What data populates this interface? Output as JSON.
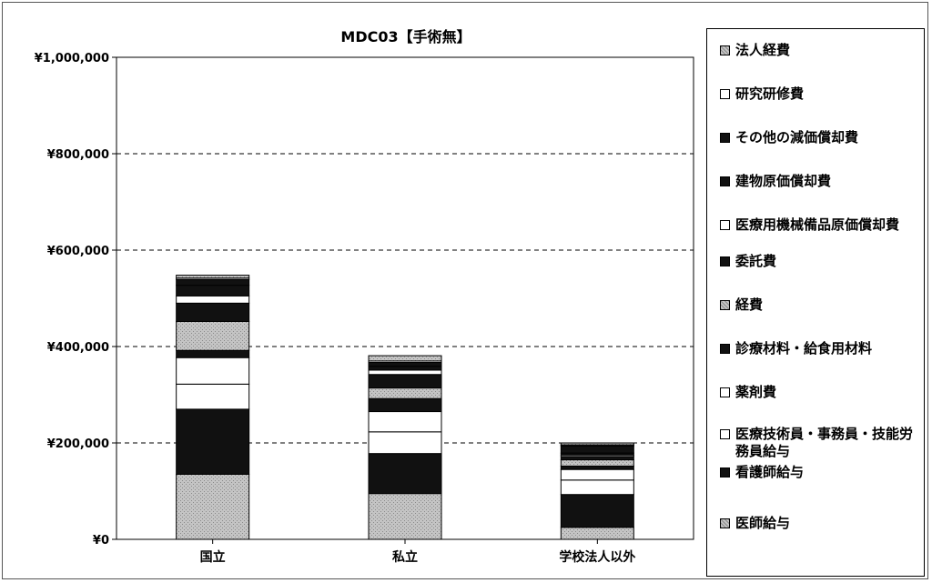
{
  "chart_data": {
    "type": "bar",
    "stacked": true,
    "title": "MDC03【手術無】",
    "xlabel": "",
    "ylabel": "",
    "categories": [
      "国立",
      "私立",
      "学校法人以外"
    ],
    "ylim": [
      0,
      1000000
    ],
    "yticks": [
      0,
      200000,
      400000,
      600000,
      800000,
      1000000
    ],
    "ytick_labels": [
      "¥0",
      "¥200,000",
      "¥400,000",
      "¥600,000",
      "¥800,000",
      "¥1,000,000"
    ],
    "grid": "horizontal dashed",
    "legend_position": "right",
    "series": [
      {
        "name": "医師給与",
        "color": "#bdbdbd",
        "values": [
          135000,
          95000,
          25000
        ]
      },
      {
        "name": "看護師給与",
        "color": "#111111",
        "values": [
          135000,
          83000,
          68000
        ]
      },
      {
        "name": "医療技術員・事務員・技能労務員給与",
        "color": "#ffffff",
        "values": [
          52000,
          45000,
          30000
        ]
      },
      {
        "name": "薬剤費",
        "color": "#ffffff",
        "values": [
          55000,
          42000,
          22000
        ]
      },
      {
        "name": "診療材料・給食用材料",
        "color": "#111111",
        "values": [
          15000,
          27000,
          7000
        ]
      },
      {
        "name": "経費",
        "color": "#bdbdbd",
        "values": [
          60000,
          22000,
          13000
        ]
      },
      {
        "name": "委託費",
        "color": "#111111",
        "values": [
          38000,
          28000,
          7000
        ]
      },
      {
        "name": "医療用機械備品原価償却費",
        "color": "#ffffff",
        "values": [
          15000,
          9000,
          3000
        ]
      },
      {
        "name": "建物原価償却費",
        "color": "#111111",
        "values": [
          22000,
          8000,
          4000
        ]
      },
      {
        "name": "その他の減価償却費",
        "color": "#111111",
        "values": [
          12000,
          8000,
          15000
        ]
      },
      {
        "name": "研究研修費",
        "color": "#ffffff",
        "values": [
          3000,
          3000,
          2000
        ]
      },
      {
        "name": "法人経費",
        "color": "#bdbdbd",
        "values": [
          6000,
          11000,
          4000
        ]
      }
    ]
  },
  "legend_order": [
    "法人経費",
    "研究研修費",
    "その他の減価償却費",
    "建物原価償却費",
    "医療用機械備品原価償却費",
    "委託費",
    "経費",
    "診療材料・給食用材料",
    "薬剤費",
    "医療技術員・事務員・技能労務員給与",
    "看護師給与",
    "医師給与"
  ]
}
